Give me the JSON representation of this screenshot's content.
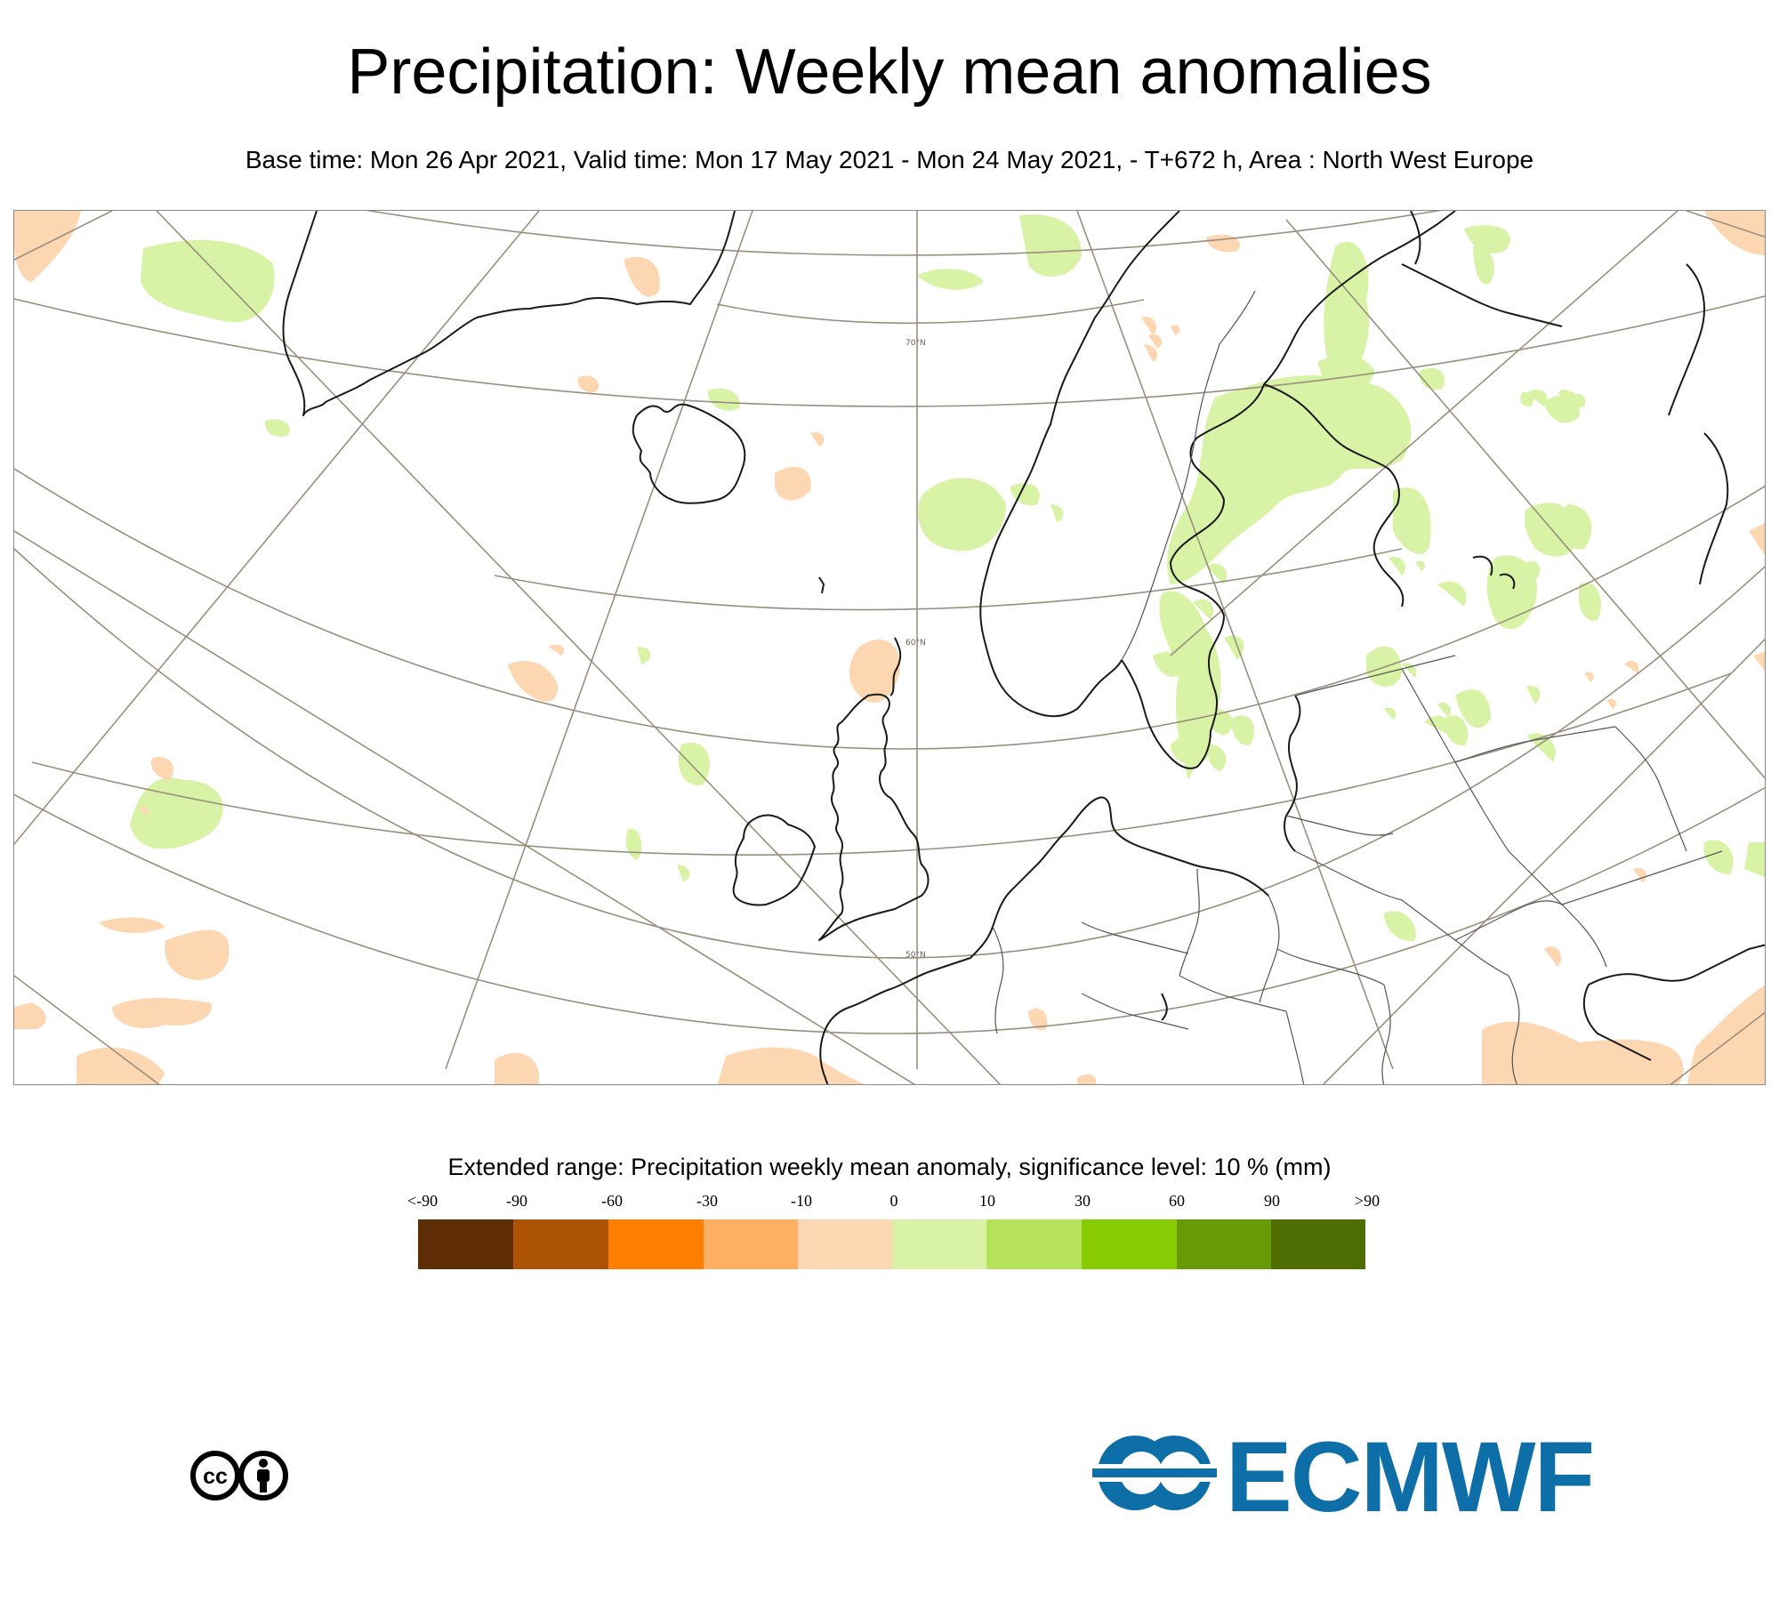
{
  "title": "Precipitation: Weekly mean anomalies",
  "subtitle": "Base time: Mon 26 Apr 2021, Valid time: Mon 17 May 2021 - Mon 24 May 2021, - T+672 h, Area : North West Europe",
  "map": {
    "lat_labels": [
      "70°N",
      "60°N",
      "50°N"
    ],
    "colors": {
      "land": "#ffffff",
      "coast": "#1a1a1a",
      "grid": "#9a8f7e",
      "border": "#555555"
    }
  },
  "legend": {
    "title": "Extended range: Precipitation weekly mean anomaly, significance level: 10 % (mm)",
    "ticks": [
      "<-90",
      "-90",
      "-60",
      "-30",
      "-10",
      "0",
      "10",
      "30",
      "60",
      "90",
      ">90"
    ],
    "colors": [
      "#5e2d05",
      "#ad5404",
      "#fd7e02",
      "#fdb061",
      "#fdd7b2",
      "#d8f2a6",
      "#b6e35a",
      "#88cc06",
      "#669a06",
      "#4e6e04"
    ]
  },
  "license_icon": "cc-by-icon",
  "logo": {
    "text": "ECMWF",
    "color": "#0e6ea8"
  }
}
